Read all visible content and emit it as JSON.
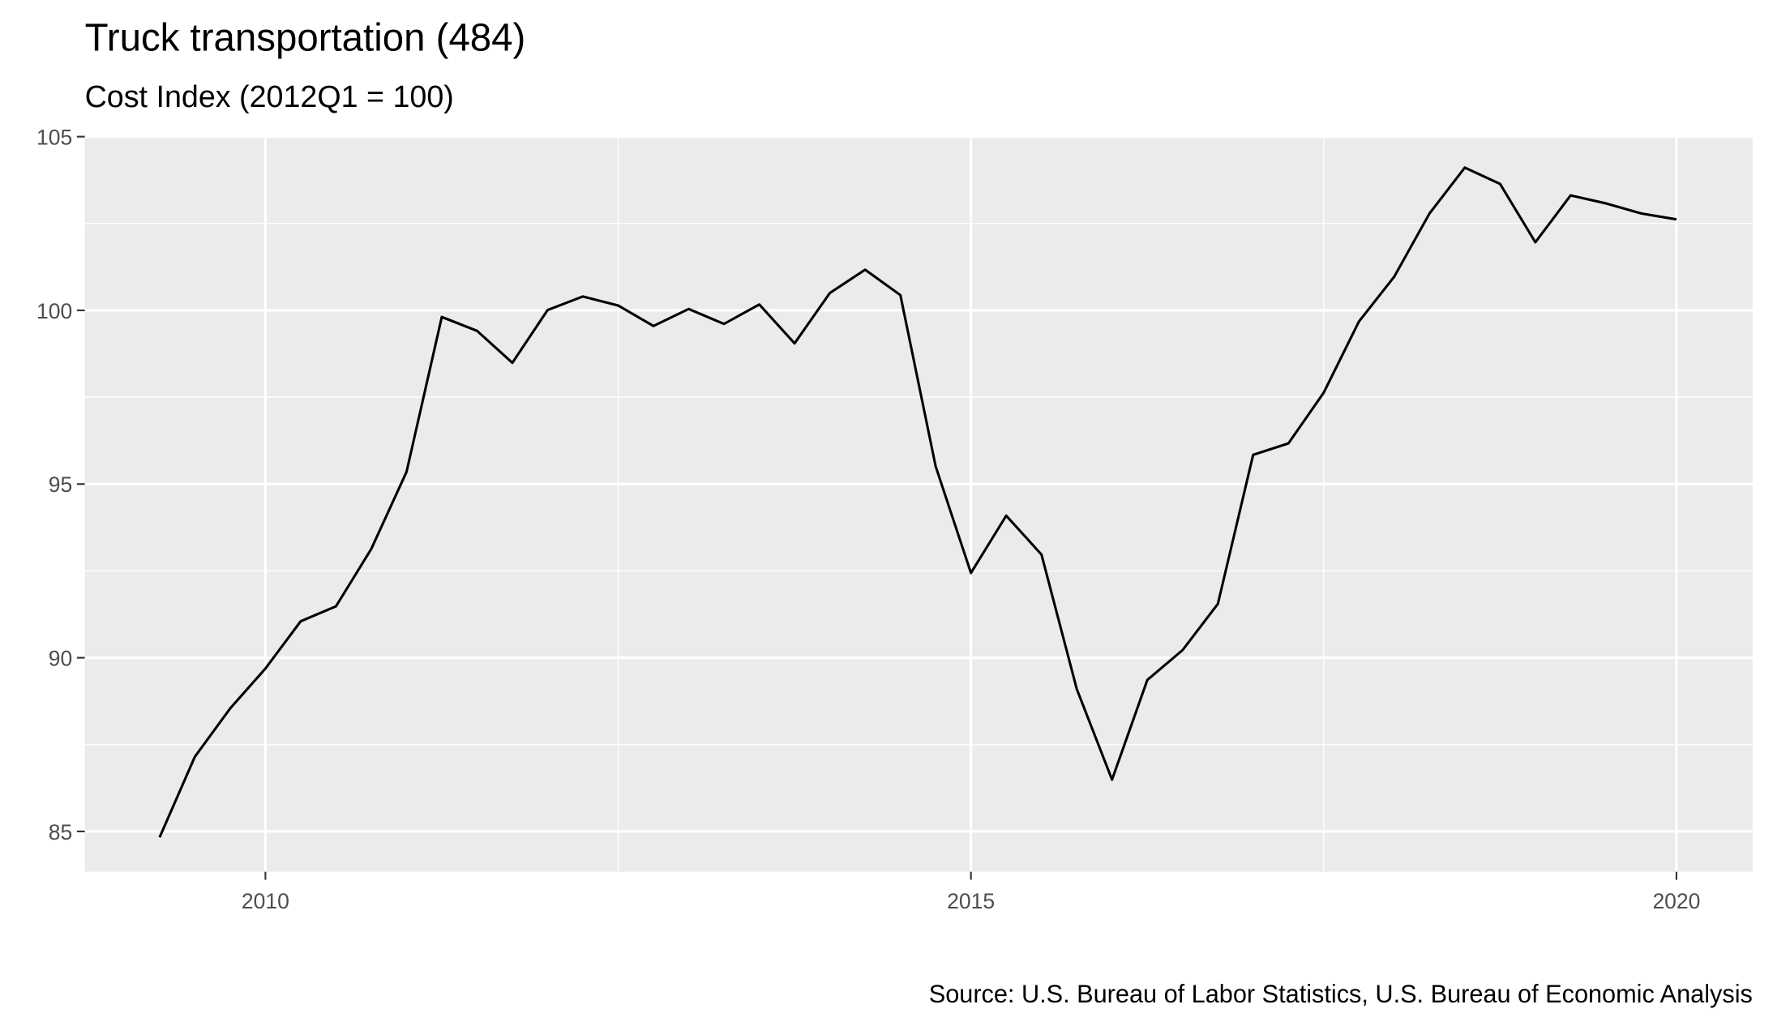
{
  "chart_data": {
    "type": "line",
    "title": "Truck transportation (484)",
    "subtitle": "Cost Index (2012Q1 = 100)",
    "caption": "Source: U.S. Bureau of Labor Statistics, U.S. Bureau of Economic Analysis",
    "x": [
      2009.25,
      2009.5,
      2009.75,
      2010.0,
      2010.25,
      2010.5,
      2010.75,
      2011.0,
      2011.25,
      2011.5,
      2011.75,
      2012.0,
      2012.25,
      2012.5,
      2012.75,
      2013.0,
      2013.25,
      2013.5,
      2013.75,
      2014.0,
      2014.25,
      2014.5,
      2014.75,
      2015.0,
      2015.25,
      2015.5,
      2015.75,
      2016.0,
      2016.25,
      2016.5,
      2016.75,
      2017.0,
      2017.25,
      2017.5,
      2017.75,
      2018.0,
      2018.25,
      2018.5,
      2018.75,
      2019.0,
      2019.25,
      2019.5,
      2019.75,
      2020.0
    ],
    "values": [
      84.83,
      87.15,
      88.54,
      89.69,
      91.05,
      91.48,
      93.13,
      95.35,
      99.81,
      99.41,
      98.49,
      100.01,
      100.4,
      100.14,
      99.55,
      100.04,
      99.61,
      100.17,
      99.05,
      100.5,
      101.17,
      100.44,
      95.51,
      92.44,
      94.09,
      92.97,
      89.1,
      86.49,
      89.36,
      90.22,
      91.55,
      95.84,
      96.17,
      97.63,
      99.68,
      100.97,
      102.79,
      104.11,
      103.64,
      101.96,
      103.31,
      103.08,
      102.79,
      102.62
    ],
    "color": "#000000",
    "xlim": [
      2008.72,
      2020.54
    ],
    "xticks": [
      2010,
      2015,
      2020
    ],
    "ylim": [
      83.84,
      105.0
    ],
    "yticks": [
      85,
      90,
      95,
      100,
      105
    ],
    "grid": true
  }
}
